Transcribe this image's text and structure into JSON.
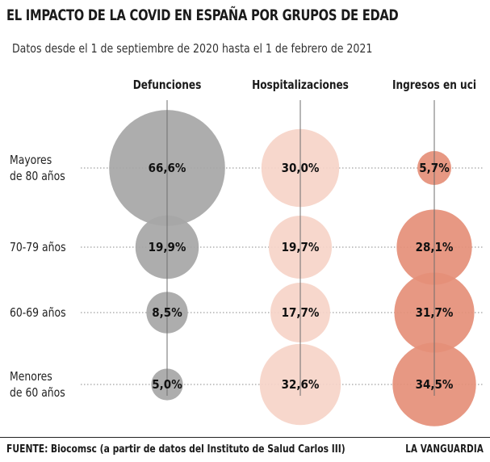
{
  "header": {
    "title": "EL IMPACTO DE LA COVID EN ESPAÑA POR GRUPOS DE EDAD",
    "subtitle": "Datos desde el 1 de septiembre de 2020 hasta el 1 de febrero de 2021"
  },
  "footer": {
    "source_label": "FUENTE:",
    "source_text": "Biocomsc (a partir de datos del Instituto de Salud Carlos III)",
    "brand": "LA VANGUARDIA"
  },
  "colors": {
    "defunciones": "#a6a6a6",
    "hospitalizaciones": "#f6d4c8",
    "uci": "#e58f78"
  },
  "chart_data": {
    "type": "bubble",
    "title": "EL IMPACTO DE LA COVID EN ESPAÑA POR GRUPOS DE EDAD",
    "subtitle": "Datos desde el 1 de septiembre de 2020 hasta el 1 de febrero de 2021",
    "unit": "%",
    "columns": [
      "Defunciones",
      "Hospitalizaciones",
      "Ingresos en uci"
    ],
    "rows": [
      {
        "label": "Mayores de 80 años",
        "lines": [
          "Mayores",
          "de 80 años"
        ]
      },
      {
        "label": "70-79 años",
        "lines": [
          "70-79 años"
        ]
      },
      {
        "label": "60-69 años",
        "lines": [
          "60-69 años"
        ]
      },
      {
        "label": "Menores de 60 años",
        "lines": [
          "Menores",
          "de 60 años"
        ]
      }
    ],
    "series": [
      {
        "name": "Defunciones",
        "values": [
          66.6,
          19.9,
          8.5,
          5.0
        ],
        "labels": [
          "66,6%",
          "19,9%",
          "8,5%",
          "5,0%"
        ]
      },
      {
        "name": "Hospitalizaciones",
        "values": [
          30.0,
          19.7,
          17.7,
          32.6
        ],
        "labels": [
          "30,0%",
          "19,7%",
          "17,7%",
          "32,6%"
        ]
      },
      {
        "name": "Ingresos en uci",
        "values": [
          5.7,
          28.1,
          31.7,
          34.5
        ],
        "labels": [
          "5,7%",
          "28,1%",
          "31,7%",
          "34,5%"
        ]
      }
    ]
  }
}
